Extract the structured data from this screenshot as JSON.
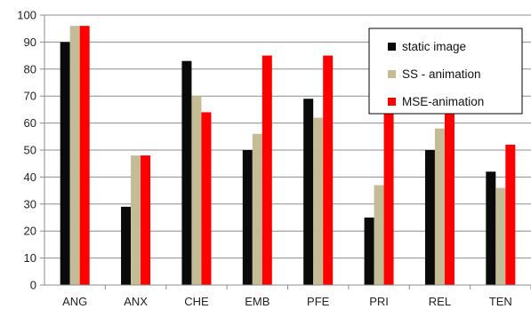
{
  "chart_data": {
    "type": "bar",
    "categories": [
      "ANG",
      "ANX",
      "CHE",
      "EMB",
      "PFE",
      "PRI",
      "REL",
      "TEN"
    ],
    "series": [
      {
        "name": "static image",
        "color": "#0a0a0a",
        "values": [
          90,
          29,
          83,
          50,
          69,
          25,
          50,
          42
        ]
      },
      {
        "name": "SS - animation",
        "color": "#c4bc96",
        "values": [
          96,
          48,
          70,
          56,
          62,
          37,
          58,
          36
        ]
      },
      {
        "name": "MSE-animation",
        "color": "#ff0000",
        "values": [
          96,
          48,
          64,
          85,
          85,
          79,
          79,
          52
        ]
      }
    ],
    "ylim": [
      0,
      100
    ],
    "yticks": [
      0,
      10,
      20,
      30,
      40,
      50,
      60,
      70,
      80,
      90,
      100
    ],
    "grid": true,
    "legend": "right",
    "title": "",
    "xlabel": "",
    "ylabel": ""
  }
}
